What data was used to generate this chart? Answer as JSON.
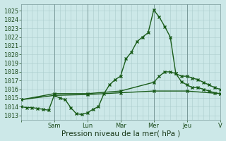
{
  "background_color": "#cce8e8",
  "grid_color": "#aacccc",
  "line_color": "#1a5c1a",
  "xlabel": "Pression niveau de la mer( hPa )",
  "ylim": [
    1012.5,
    1025.8
  ],
  "yticks": [
    1013,
    1014,
    1015,
    1016,
    1017,
    1018,
    1019,
    1020,
    1021,
    1022,
    1023,
    1024,
    1025
  ],
  "xlim": [
    0,
    36
  ],
  "day_tick_positions": [
    0,
    6,
    12,
    18,
    24,
    30,
    36
  ],
  "day_labels": [
    "",
    "Sam",
    "Lun",
    "Mar",
    "Mer",
    "Jeu",
    "V"
  ],
  "vline_positions": [
    6,
    12,
    18,
    24,
    30
  ],
  "sharp_line_x": [
    0,
    1,
    2,
    3,
    4,
    5,
    6,
    7,
    8,
    9,
    10,
    11,
    12,
    13,
    14,
    15,
    16,
    17,
    18,
    19,
    20,
    21,
    22,
    23,
    24,
    25,
    26,
    27,
    28,
    29,
    30,
    31,
    32,
    33,
    34,
    35,
    36
  ],
  "sharp_line_y": [
    1014.0,
    1013.9,
    1013.9,
    1013.8,
    1013.7,
    1013.6,
    1015.3,
    1015.0,
    1014.8,
    1013.9,
    1013.2,
    1013.1,
    1013.3,
    1013.7,
    1014.0,
    1015.5,
    1016.5,
    1017.1,
    1017.5,
    1019.5,
    1020.3,
    1021.5,
    1022.0,
    1022.5,
    1025.1,
    1024.3,
    1023.2,
    1022.0,
    1017.8,
    1016.9,
    1016.5,
    1016.2,
    1016.2,
    1016.0,
    1015.8,
    1015.6,
    1015.5
  ],
  "mid_line_x": [
    0,
    6,
    12,
    18,
    24,
    25,
    26,
    27,
    28,
    29,
    30,
    31,
    32,
    33,
    34,
    35,
    36
  ],
  "mid_line_y": [
    1014.8,
    1015.5,
    1015.5,
    1015.8,
    1016.8,
    1017.5,
    1018.0,
    1018.0,
    1017.8,
    1017.5,
    1017.5,
    1017.3,
    1017.1,
    1016.8,
    1016.5,
    1016.2,
    1016.0
  ],
  "flat_line_x": [
    0,
    6,
    12,
    18,
    24,
    30,
    36
  ],
  "flat_line_y": [
    1014.8,
    1015.3,
    1015.4,
    1015.6,
    1015.8,
    1015.8,
    1015.5
  ],
  "marker_size": 2.5,
  "line_width": 1.0,
  "font_size_ticks": 6,
  "font_size_xlabel": 7.5
}
